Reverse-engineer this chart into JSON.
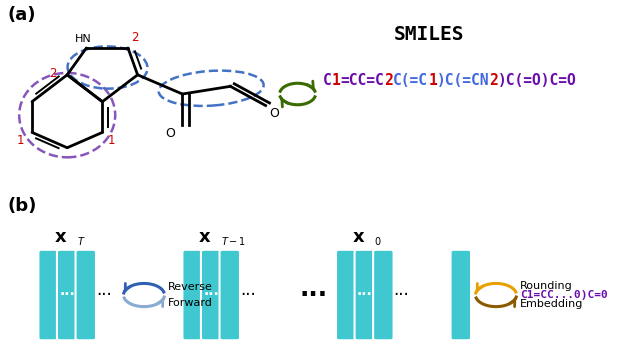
{
  "title_a": "(a)",
  "title_b": "(b)",
  "smiles_title": "SMILES",
  "purple_color": "#6A0DAD",
  "blue_color": "#4169E1",
  "red_color": "#CC0000",
  "green_arrow_color": "#3A6B00",
  "brown_arrow_color": "#8B5A00",
  "orange_arrow_color": "#E8A000",
  "blue_arrow_light": "#8AAAD0",
  "blue_arrow_dark": "#3060B0",
  "cyan_fill": "#40C8D0",
  "cyan_edge": "#FFFFFF",
  "background": "#FFFFFF",
  "smiles_segments": [
    [
      "C",
      "#6A0DAD"
    ],
    [
      "1",
      "#CC0000"
    ],
    [
      "=CC=C",
      "#6A0DAD"
    ],
    [
      "2",
      "#CC0000"
    ],
    [
      "C(=C",
      "#4169E1"
    ],
    [
      "1",
      "#CC0000"
    ],
    [
      ")C(=CN",
      "#4169E1"
    ],
    [
      "2",
      "#CC0000"
    ],
    [
      ")C(=O)C=O",
      "#6A0DAD"
    ]
  ],
  "smiles_b": "C1=CC...0)C=0"
}
